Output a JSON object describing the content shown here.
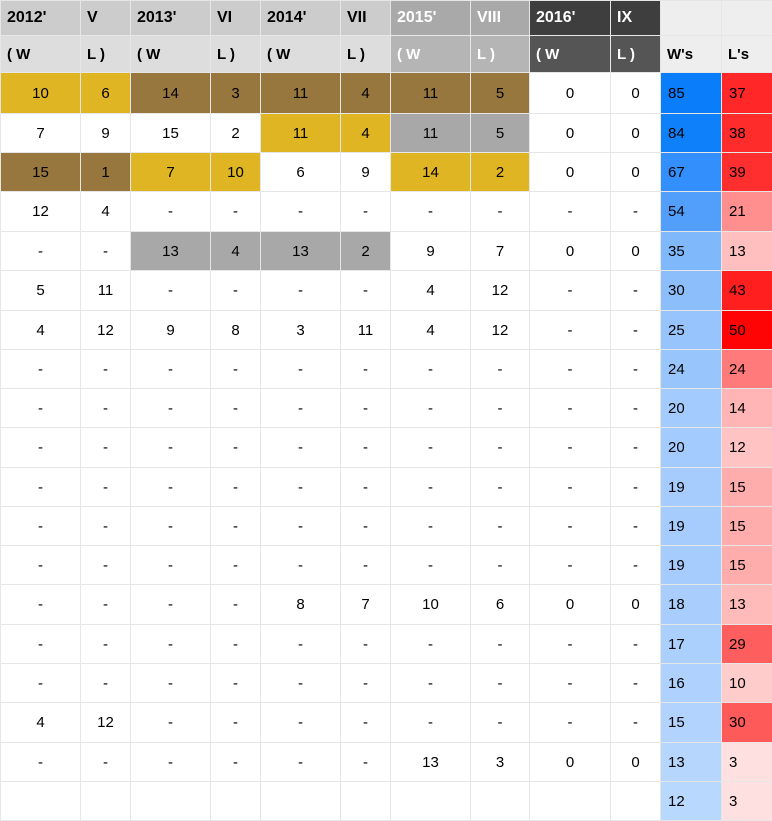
{
  "header_years": [
    "2012'",
    "V",
    "2013'",
    "VI",
    "2014'",
    "VII",
    "2015'",
    "VIII",
    "2016'",
    "IX",
    "",
    ""
  ],
  "header_sub": [
    "( W",
    "L )",
    "( W",
    "L )",
    "( W",
    "L )",
    "( W",
    "L )",
    "( W",
    "L )",
    "W's",
    "L's"
  ],
  "header_colors": {
    "year_bg": [
      "#cccccc",
      "#cccccc",
      "#cccccc",
      "#cccccc",
      "#cccccc",
      "#cccccc",
      "#a9a9a9",
      "#a9a9a9",
      "#3e3e3e",
      "#3e3e3e",
      "#eeeeee",
      "#eeeeee"
    ],
    "year_fg": [
      "#000000",
      "#000000",
      "#000000",
      "#000000",
      "#000000",
      "#000000",
      "#ffffff",
      "#ffffff",
      "#ffffff",
      "#ffffff",
      "#000000",
      "#000000"
    ],
    "sub_bg": [
      "#dddddd",
      "#dddddd",
      "#dddddd",
      "#dddddd",
      "#dddddd",
      "#dddddd",
      "#b5b5b5",
      "#b5b5b5",
      "#555555",
      "#555555",
      "#eeeeee",
      "#eeeeee"
    ],
    "sub_fg": [
      "#000000",
      "#000000",
      "#000000",
      "#000000",
      "#000000",
      "#000000",
      "#ffffff",
      "#ffffff",
      "#ffffff",
      "#ffffff",
      "#000000",
      "#000000"
    ]
  },
  "place_colors": {
    "gold": "#e0b524",
    "silver": "#a8a8a8",
    "bronze": "#98773f",
    "none": "#ffffff"
  },
  "rows": [
    {
      "cells": [
        "10",
        "6",
        "14",
        "3",
        "11",
        "4",
        "11",
        "5",
        "0",
        "0"
      ],
      "marks": [
        "gold",
        "bronze",
        "bronze",
        "bronze",
        "none"
      ],
      "w": "85",
      "l": "37",
      "w_bg": "#0a7dfa",
      "l_bg": "#ff2727"
    },
    {
      "cells": [
        "7",
        "9",
        "15",
        "2",
        "11",
        "4",
        "11",
        "5",
        "0",
        "0"
      ],
      "marks": [
        "none",
        "none",
        "gold",
        "silver",
        "none"
      ],
      "w": "84",
      "l": "38",
      "w_bg": "#0e80fa",
      "l_bg": "#ff2c2c"
    },
    {
      "cells": [
        "15",
        "1",
        "7",
        "10",
        "6",
        "9",
        "14",
        "2",
        "0",
        "0"
      ],
      "marks": [
        "bronze",
        "gold",
        "none",
        "gold",
        "none"
      ],
      "w": "67",
      "l": "39",
      "w_bg": "#338ffb",
      "l_bg": "#ff2f2f"
    },
    {
      "cells": [
        "12",
        "4",
        "-",
        "-",
        "-",
        "-",
        "-",
        "-",
        "-",
        "-"
      ],
      "marks": [
        "none",
        "none",
        "none",
        "none",
        "none"
      ],
      "w": "54",
      "l": "21",
      "w_bg": "#529ffb",
      "l_bg": "#ff8f8f"
    },
    {
      "cells": [
        "-",
        "-",
        "13",
        "4",
        "13",
        "2",
        "9",
        "7",
        "0",
        "0"
      ],
      "marks": [
        "none",
        "silver",
        "silver",
        "none",
        "none"
      ],
      "w": "35",
      "l": "13",
      "w_bg": "#80b8fc",
      "l_bg": "#ffbfbf"
    },
    {
      "cells": [
        "5",
        "11",
        "-",
        "-",
        "-",
        "-",
        "4",
        "12",
        "-",
        "-"
      ],
      "marks": [
        "none",
        "none",
        "none",
        "none",
        "none"
      ],
      "w": "30",
      "l": "43",
      "w_bg": "#8cbefc",
      "l_bg": "#ff1f1f"
    },
    {
      "cells": [
        "4",
        "12",
        "9",
        "8",
        "3",
        "11",
        "4",
        "12",
        "-",
        "-"
      ],
      "marks": [
        "none",
        "none",
        "none",
        "none",
        "none"
      ],
      "w": "25",
      "l": "50",
      "w_bg": "#97c4fd",
      "l_bg": "#ff0404"
    },
    {
      "cells": [
        "-",
        "-",
        "-",
        "-",
        "-",
        "-",
        "-",
        "-",
        "-",
        "-"
      ],
      "marks": [
        "none",
        "none",
        "none",
        "none",
        "none"
      ],
      "w": "24",
      "l": "24",
      "w_bg": "#99c5fd",
      "l_bg": "#ff7a7a"
    },
    {
      "cells": [
        "-",
        "-",
        "-",
        "-",
        "-",
        "-",
        "-",
        "-",
        "-",
        "-"
      ],
      "marks": [
        "none",
        "none",
        "none",
        "none",
        "none"
      ],
      "w": "20",
      "l": "14",
      "w_bg": "#a3cbfd",
      "l_bg": "#ffb5b5"
    },
    {
      "cells": [
        "-",
        "-",
        "-",
        "-",
        "-",
        "-",
        "-",
        "-",
        "-",
        "-"
      ],
      "marks": [
        "none",
        "none",
        "none",
        "none",
        "none"
      ],
      "w": "20",
      "l": "12",
      "w_bg": "#a3cbfd",
      "l_bg": "#ffc3c3"
    },
    {
      "cells": [
        "-",
        "-",
        "-",
        "-",
        "-",
        "-",
        "-",
        "-",
        "-",
        "-"
      ],
      "marks": [
        "none",
        "none",
        "none",
        "none",
        "none"
      ],
      "w": "19",
      "l": "15",
      "w_bg": "#a6ccfd",
      "l_bg": "#ffacac"
    },
    {
      "cells": [
        "-",
        "-",
        "-",
        "-",
        "-",
        "-",
        "-",
        "-",
        "-",
        "-"
      ],
      "marks": [
        "none",
        "none",
        "none",
        "none",
        "none"
      ],
      "w": "19",
      "l": "15",
      "w_bg": "#a6ccfd",
      "l_bg": "#ffacac"
    },
    {
      "cells": [
        "-",
        "-",
        "-",
        "-",
        "-",
        "-",
        "-",
        "-",
        "-",
        "-"
      ],
      "marks": [
        "none",
        "none",
        "none",
        "none",
        "none"
      ],
      "w": "19",
      "l": "15",
      "w_bg": "#a6ccfd",
      "l_bg": "#ffacac"
    },
    {
      "cells": [
        "-",
        "-",
        "-",
        "-",
        "8",
        "7",
        "10",
        "6",
        "0",
        "0"
      ],
      "marks": [
        "none",
        "none",
        "none",
        "none",
        "none"
      ],
      "w": "18",
      "l": "13",
      "w_bg": "#a9cefd",
      "l_bg": "#ffbaba"
    },
    {
      "cells": [
        "-",
        "-",
        "-",
        "-",
        "-",
        "-",
        "-",
        "-",
        "-",
        "-"
      ],
      "marks": [
        "none",
        "none",
        "none",
        "none",
        "none"
      ],
      "w": "17",
      "l": "29",
      "w_bg": "#abd0fd",
      "l_bg": "#ff5e5e"
    },
    {
      "cells": [
        "-",
        "-",
        "-",
        "-",
        "-",
        "-",
        "-",
        "-",
        "-",
        "-"
      ],
      "marks": [
        "none",
        "none",
        "none",
        "none",
        "none"
      ],
      "w": "16",
      "l": "10",
      "w_bg": "#aed1fd",
      "l_bg": "#ffcccc"
    },
    {
      "cells": [
        "4",
        "12",
        "-",
        "-",
        "-",
        "-",
        "-",
        "-",
        "-",
        "-"
      ],
      "marks": [
        "none",
        "none",
        "none",
        "none",
        "none"
      ],
      "w": "15",
      "l": "30",
      "w_bg": "#b1d3fd",
      "l_bg": "#ff5a5a"
    },
    {
      "cells": [
        "-",
        "-",
        "-",
        "-",
        "-",
        "-",
        "13",
        "3",
        "0",
        "0"
      ],
      "marks": [
        "none",
        "none",
        "none",
        "none",
        "none"
      ],
      "w": "13",
      "l": "3",
      "w_bg": "#b6d6fd",
      "l_bg": "#ffe0e0"
    },
    {
      "cells": [
        "",
        "",
        "",
        "",
        "",
        "",
        "",
        "",
        "",
        ""
      ],
      "marks": [
        "none",
        "none",
        "none",
        "none",
        "none"
      ],
      "w": "12",
      "l": "3",
      "w_bg": "#b9d8fd",
      "l_bg": "#ffe0e0"
    }
  ]
}
